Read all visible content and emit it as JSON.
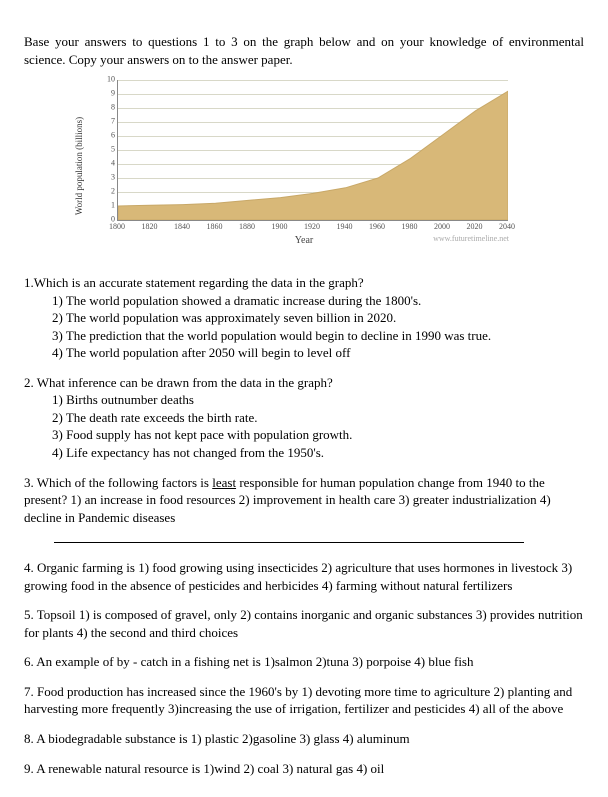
{
  "intro": "Base your answers to questions 1 to 3 on the graph below and on your knowledge of environmental science. Copy your answers on to  the answer paper.",
  "chart": {
    "type": "area",
    "ylabel": "World population (billions)",
    "xlabel": "Year",
    "ylim": [
      0,
      10
    ],
    "ytick_step": 1,
    "yticks": [
      0,
      1,
      2,
      3,
      4,
      5,
      6,
      7,
      8,
      9,
      10
    ],
    "xticks": [
      "1800",
      "1820",
      "1840",
      "1860",
      "1880",
      "1900",
      "1920",
      "1940",
      "1960",
      "1980",
      "2000",
      "2020",
      "2040"
    ],
    "fill_color": "#d8b878",
    "line_color": "#c8a868",
    "grid_color": "#d8d8c8",
    "background_color": "#ffffff",
    "data": [
      {
        "x": 0,
        "y": 1.0
      },
      {
        "x": 1,
        "y": 1.05
      },
      {
        "x": 2,
        "y": 1.1
      },
      {
        "x": 3,
        "y": 1.2
      },
      {
        "x": 4,
        "y": 1.4
      },
      {
        "x": 5,
        "y": 1.6
      },
      {
        "x": 6,
        "y": 1.9
      },
      {
        "x": 7,
        "y": 2.3
      },
      {
        "x": 8,
        "y": 3.0
      },
      {
        "x": 9,
        "y": 4.4
      },
      {
        "x": 10,
        "y": 6.1
      },
      {
        "x": 11,
        "y": 7.8
      },
      {
        "x": 12,
        "y": 9.2
      }
    ],
    "watermark": "www.futuretimeline.net"
  },
  "q1": {
    "stem": "1.Which is an accurate statement regarding the data in the graph?",
    "o1": "1) The world population showed a dramatic increase during the 1800's.",
    "o2": "2)  The world population was approximately seven billion in  2020.",
    "o3": "3)  The prediction that the world population would begin to decline in 1990 was true.",
    "o4": "4) The world population after 2050 will begin to level off"
  },
  "q2": {
    "stem": "2. What inference can be drawn from the data in the graph?",
    "o1": "1)   Births outnumber deaths",
    "o2": "2)   The death rate exceeds the birth rate.",
    "o3": "3)   Food supply has not kept pace with population growth.",
    "o4": "4)   Life expectancy has not changed from the 1950's."
  },
  "q3": {
    "stem": "3. Which of the following factors is ",
    "least": "least",
    "stem2": " responsible for human population change from 1940 to the present? 1) an increase in food resources 2) improvement in health care 3) greater industrialization  4) decline in Pandemic diseases"
  },
  "q4": {
    "stem": "4. Organic farming is 1) food growing using insecticides 2) agriculture that uses  hormones in livestock  3) growing food in the absence of pesticides and  herbicides  4) farming without natural fertilizers"
  },
  "q5": {
    "stem": "5. Topsoil  1) is composed of gravel, only 2) contains inorganic and organic substances 3) provides nutrition for plants 4) the second and third choices"
  },
  "q6": {
    "stem": "6. An example of by - catch in a fishing net is 1)salmon   2)tuna   3) porpoise  4) blue fish"
  },
  "q7": {
    "stem": "7. Food production has increased since the 1960's by 1) devoting more time to agriculture 2) planting and harvesting more frequently 3)increasing the use of irrigation, fertilizer and pesticides 4) all of the above"
  },
  "q8": {
    "stem": "8. A  biodegradable substance is 1) plastic  2)gasoline  3) glass  4) aluminum"
  },
  "q9": {
    "stem": "9. A renewable natural resource is 1)wind  2) coal  3) natural gas  4) oil"
  }
}
